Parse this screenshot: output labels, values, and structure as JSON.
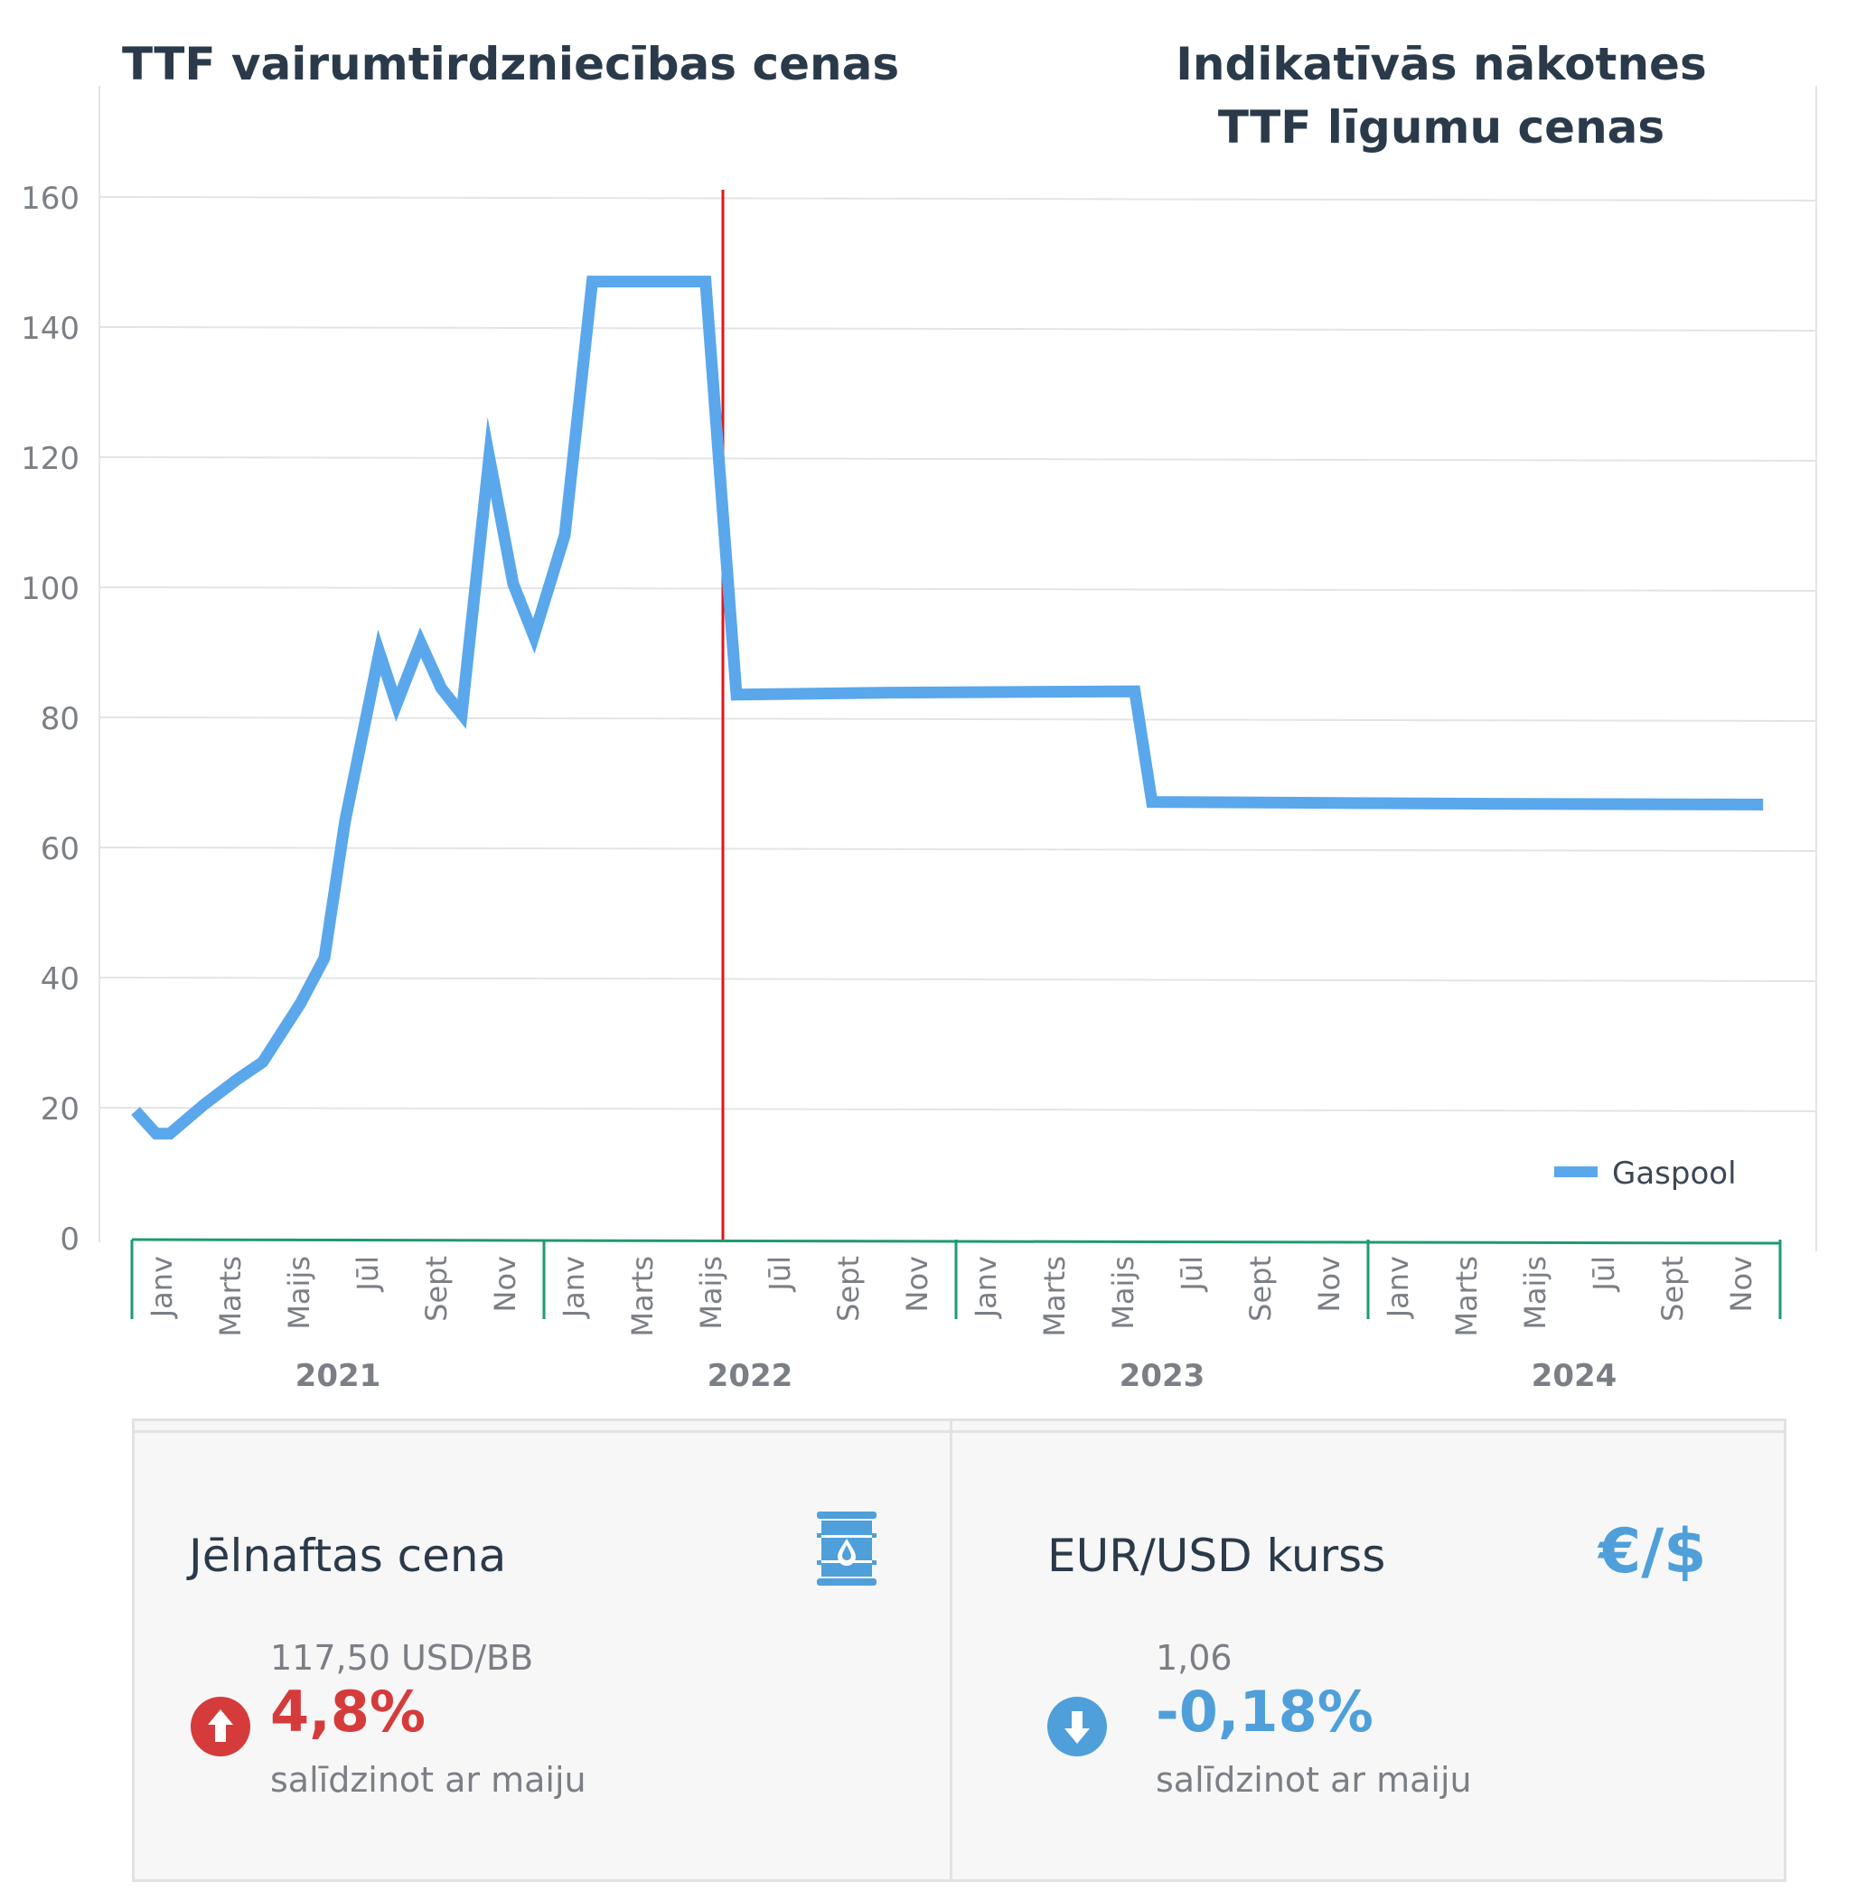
{
  "titles": {
    "left": "TTF vairumtirdzniecības cenas",
    "right_line1": "Indikatīvās nākotnes",
    "right_line2": "TTF līgumu cenas"
  },
  "chart_data": {
    "type": "line",
    "title": "",
    "xlabel": "",
    "ylabel": "",
    "ylim": [
      0,
      170
    ],
    "yticks": [
      0,
      20,
      40,
      60,
      80,
      100,
      120,
      140,
      160
    ],
    "grid": true,
    "legend_position": "bottom-right",
    "colors": {
      "line": "#5aa7ec",
      "divider": "#e3141b",
      "axis": "#1f9a6e",
      "grid": "#e4e4e4"
    },
    "month_tick_labels": [
      "Janv",
      "Marts",
      "Maijs",
      "Jūl",
      "Sept",
      "Nov"
    ],
    "years": [
      "2021",
      "2022",
      "2023",
      "2024"
    ],
    "divider_month_index": 17,
    "series": [
      {
        "name": "Gaspool",
        "values": [
          {
            "m": 0,
            "v": 19.5
          },
          {
            "m": 0.6,
            "v": 16
          },
          {
            "m": 1,
            "v": 16
          },
          {
            "m": 2,
            "v": 20.5
          },
          {
            "m": 3,
            "v": 24.5
          },
          {
            "m": 3.7,
            "v": 27
          },
          {
            "m": 4.8,
            "v": 36
          },
          {
            "m": 5.5,
            "v": 43
          },
          {
            "m": 6.1,
            "v": 64
          },
          {
            "m": 7.1,
            "v": 90
          },
          {
            "m": 7.6,
            "v": 82
          },
          {
            "m": 8.3,
            "v": 91.5
          },
          {
            "m": 8.9,
            "v": 84.5
          },
          {
            "m": 9.5,
            "v": 80.5
          },
          {
            "m": 10.3,
            "v": 120
          },
          {
            "m": 11,
            "v": 100.5
          },
          {
            "m": 11.6,
            "v": 92.5
          },
          {
            "m": 12.5,
            "v": 108
          },
          {
            "m": 13.3,
            "v": 147
          },
          {
            "m": 16,
            "v": 147
          },
          {
            "m": 16.6,
            "v": 147
          },
          {
            "m": 17.5,
            "v": 83.5
          },
          {
            "m": 22,
            "v": 83.8
          },
          {
            "m": 29.1,
            "v": 84
          },
          {
            "m": 29.6,
            "v": 67
          },
          {
            "m": 36,
            "v": 66.8
          },
          {
            "m": 40.3,
            "v": 66.7
          },
          {
            "m": 47.4,
            "v": 66.6
          }
        ]
      }
    ]
  },
  "cards": {
    "oil": {
      "title": "Jēlnaftas cena",
      "value": "117,50 USD/BB",
      "change": "4,8%",
      "note": "salīdzinot ar maiju",
      "icon": "oil-barrel-icon",
      "arrow_icon": "arrow-up-icon",
      "color": "#d63b3b"
    },
    "fx": {
      "title": "EUR/USD kurss",
      "value": "1,06",
      "change": "-0,18%",
      "note": "salīdzinot ar maiju",
      "symbol": "€/$",
      "arrow_icon": "arrow-down-icon",
      "color": "#4f9fda"
    }
  }
}
